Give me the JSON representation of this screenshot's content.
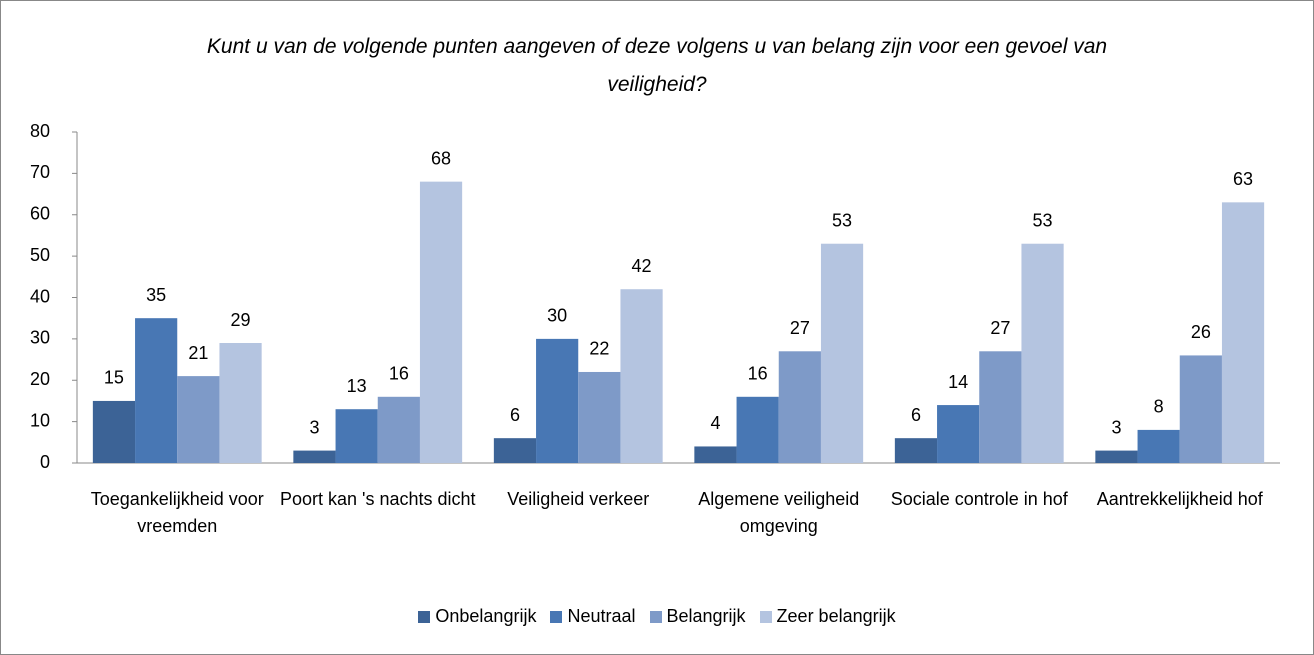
{
  "chart_data": {
    "type": "bar",
    "title": "Kunt u van de volgende punten aangeven of deze volgens u van belang zijn voor een gevoel van veiligheid?",
    "categories": [
      "Toegankelijkheid voor vreemden",
      "Poort kan 's nachts dicht",
      "Veiligheid verkeer",
      "Algemene veiligheid omgeving",
      "Sociale controle in hof",
      "Aantrekkelijkheid hof"
    ],
    "series": [
      {
        "name": "Onbelangrijk",
        "color": "#3c6396",
        "values": [
          15,
          3,
          6,
          4,
          6,
          3
        ]
      },
      {
        "name": "Neutraal",
        "color": "#4877b4",
        "values": [
          35,
          13,
          30,
          16,
          14,
          8
        ]
      },
      {
        "name": "Belangrijk",
        "color": "#7e9ac8",
        "values": [
          21,
          16,
          22,
          27,
          27,
          26
        ]
      },
      {
        "name": "Zeer belangrijk",
        "color": "#b4c4e0",
        "values": [
          29,
          68,
          42,
          53,
          53,
          63
        ]
      }
    ],
    "ylim": [
      0,
      80
    ],
    "yticks": [
      0,
      10,
      20,
      30,
      40,
      50,
      60,
      70,
      80
    ],
    "grid": false,
    "legend": "bottom"
  }
}
